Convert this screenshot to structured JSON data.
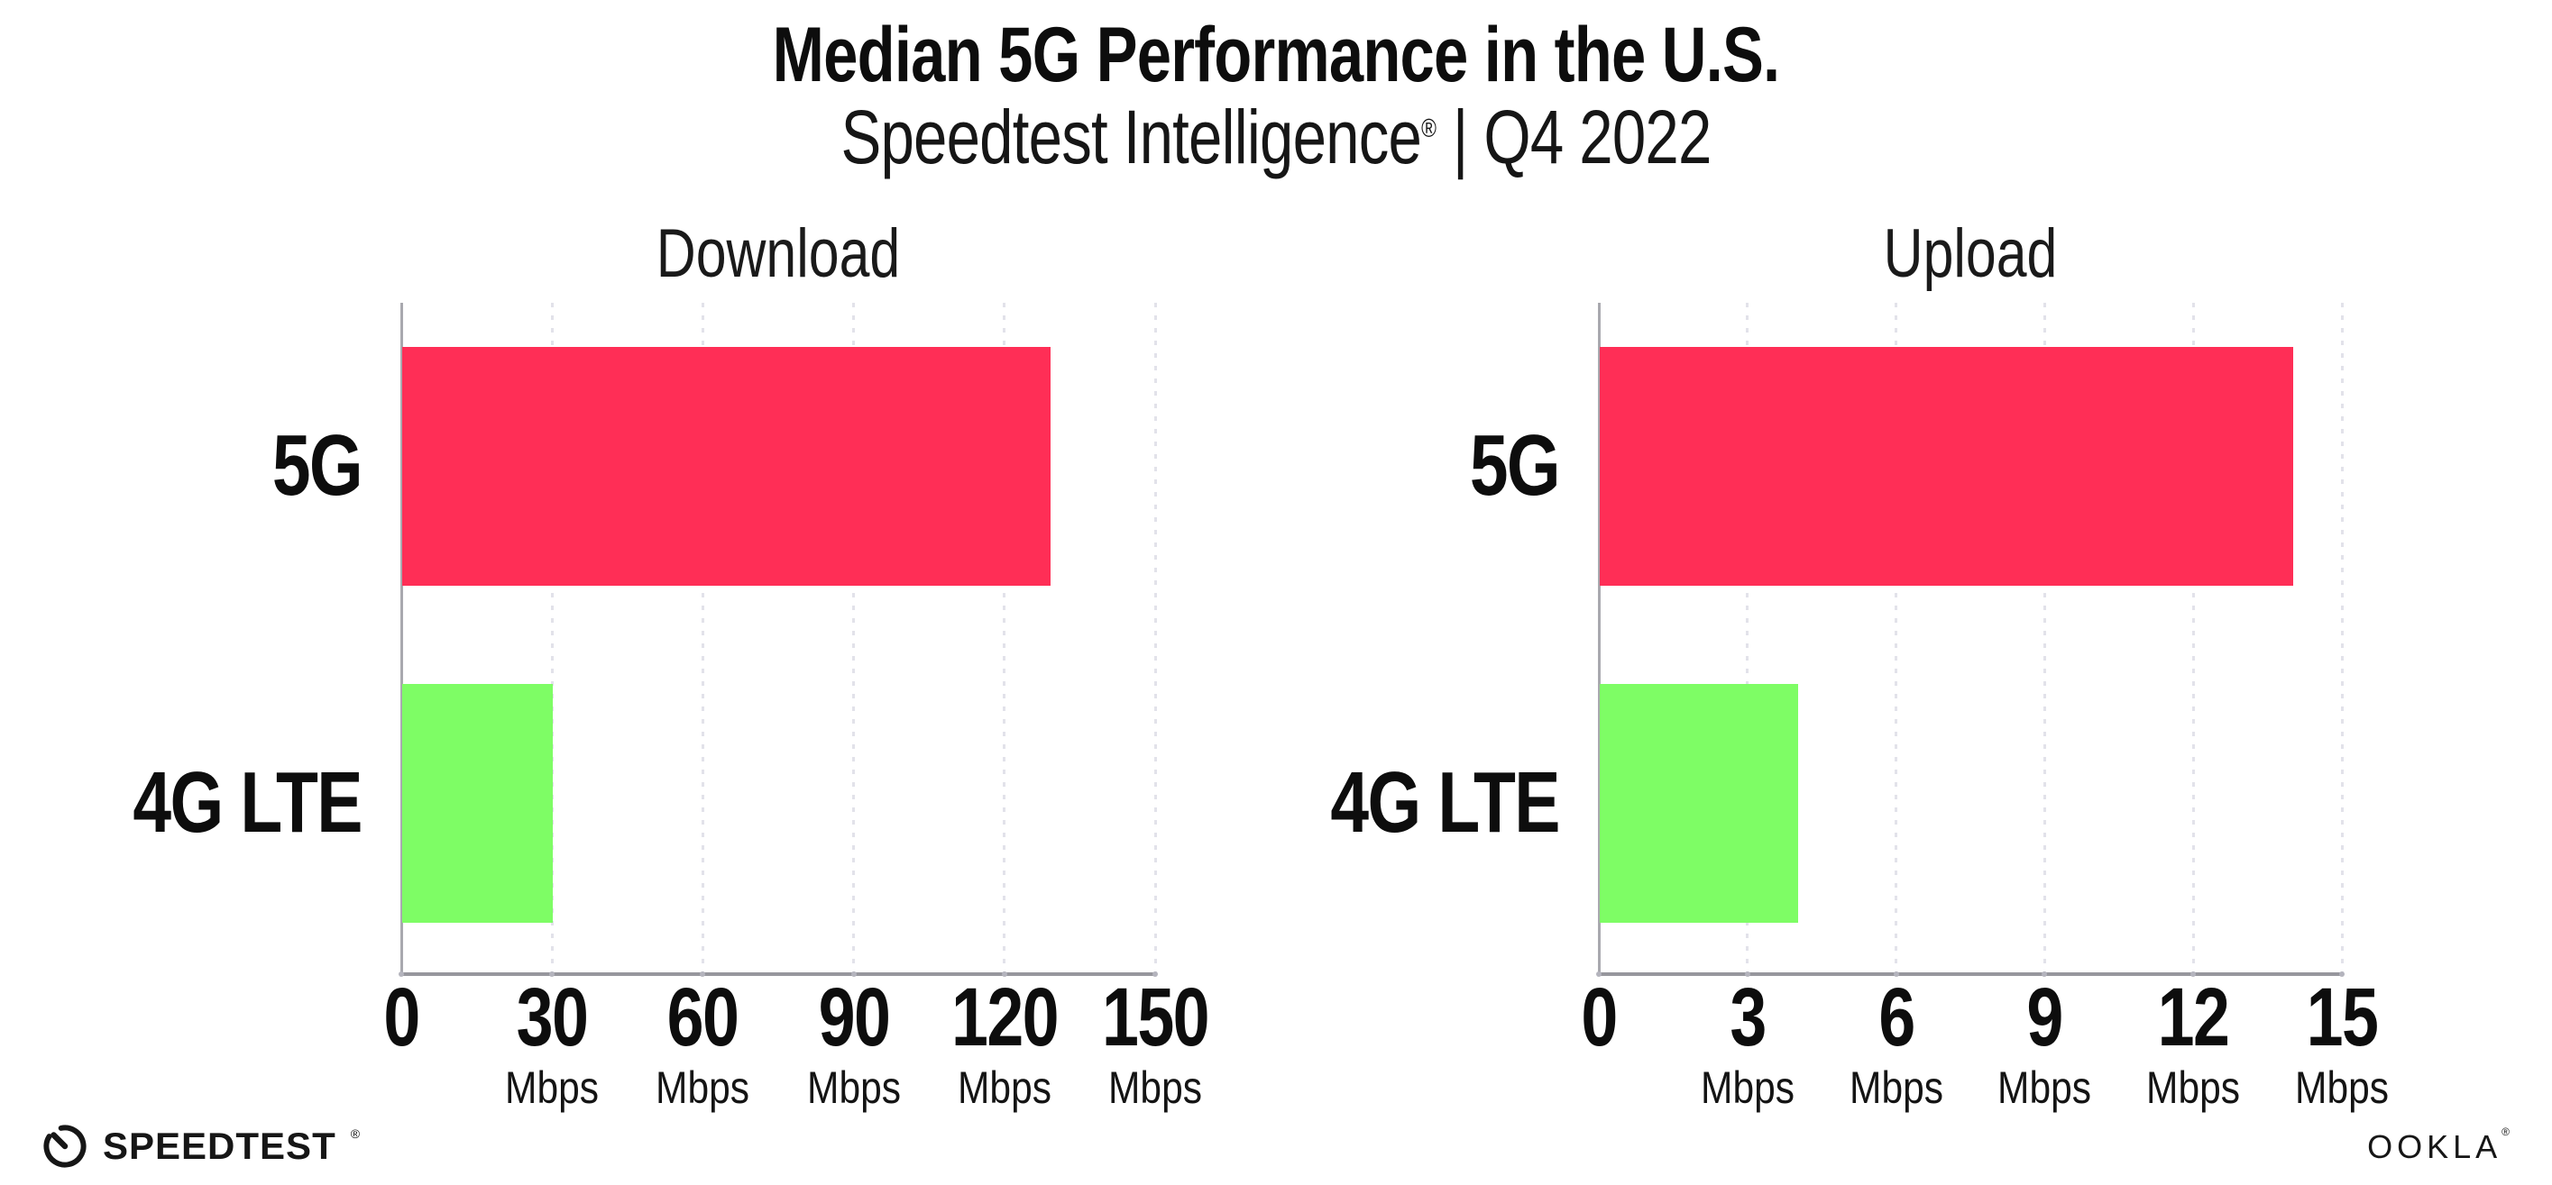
{
  "header": {
    "title": "Median 5G Performance in the U.S.",
    "subtitle_brand": "Speedtest Intelligence",
    "subtitle_reg": "®",
    "subtitle_sep": " | ",
    "subtitle_period": "Q4 2022"
  },
  "footer": {
    "speedtest_logo_text": "SPEEDTEST",
    "speedtest_reg": "®",
    "ookla_logo_text": "OOKLA",
    "ookla_reg": "®"
  },
  "colors": {
    "background": "#ffffff",
    "bar_5g": "#FF2E56",
    "bar_4g_lte": "#7EFD65",
    "axis": "#97979d",
    "gridline": "#e2e2ea",
    "text": "#0d0d0d"
  },
  "chart_data": [
    {
      "type": "bar",
      "orientation": "horizontal",
      "title": "Download",
      "categories": [
        "5G",
        "4G LTE"
      ],
      "values": [
        129,
        30
      ],
      "bar_colors": [
        "#FF2E56",
        "#7EFD65"
      ],
      "unit": "Mbps",
      "xlim": [
        0,
        150
      ],
      "xticks": [
        0,
        30,
        60,
        90,
        120,
        150
      ],
      "grid": "dotted-vertical",
      "legend": "none"
    },
    {
      "type": "bar",
      "orientation": "horizontal",
      "title": "Upload",
      "categories": [
        "5G",
        "4G LTE"
      ],
      "values": [
        14,
        4
      ],
      "bar_colors": [
        "#FF2E56",
        "#7EFD65"
      ],
      "unit": "Mbps",
      "xlim": [
        0,
        15
      ],
      "xticks": [
        0,
        3,
        6,
        9,
        12,
        15
      ],
      "grid": "dotted-vertical",
      "legend": "none"
    }
  ]
}
